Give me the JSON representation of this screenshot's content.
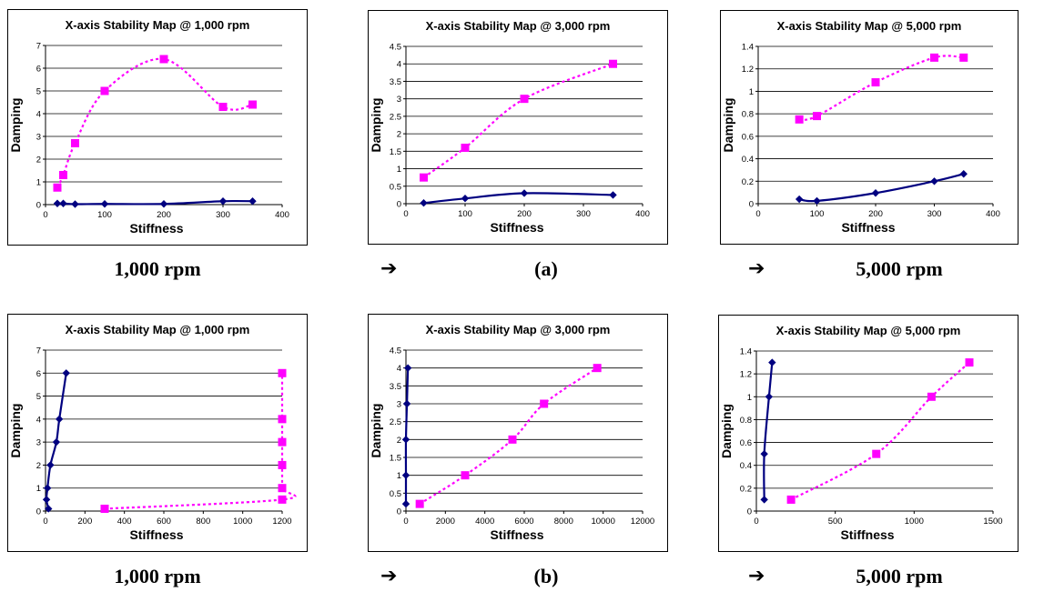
{
  "captions": {
    "row1": {
      "left": "1,000 rpm",
      "mid": "(a)",
      "right": "5,000 rpm"
    },
    "row2": {
      "left": "1,000 rpm",
      "mid": "(b)",
      "right": "5,000 rpm"
    },
    "arrow_glyph": "➔"
  },
  "colors": {
    "series_solid": "#000080",
    "series_dashed": "#ff00ff"
  },
  "chart_data": [
    {
      "type": "scatter",
      "title": "X-axis Stability Map @ 1,000 rpm",
      "xlabel": "Stiffness",
      "ylabel": "Damping",
      "xlim": [
        0,
        400
      ],
      "ylim": [
        0,
        7
      ],
      "xticks": [
        0,
        100,
        200,
        300,
        400
      ],
      "yticks": [
        0,
        1,
        2,
        3,
        4,
        5,
        6,
        7
      ],
      "grid": "horizontal",
      "series": [
        {
          "style": "solid",
          "color": "#000080",
          "marker": "diamond",
          "points": [
            [
              20,
              0.05
            ],
            [
              30,
              0.05
            ],
            [
              50,
              0.02
            ],
            [
              100,
              0.03
            ],
            [
              200,
              0.03
            ],
            [
              300,
              0.15
            ],
            [
              350,
              0.15
            ]
          ]
        },
        {
          "style": "dashed",
          "color": "#ff00ff",
          "marker": "square",
          "points": [
            [
              20,
              0.75
            ],
            [
              30,
              1.3
            ],
            [
              50,
              2.7
            ],
            [
              100,
              5.0
            ],
            [
              200,
              6.4
            ],
            [
              300,
              4.3
            ],
            [
              350,
              4.4
            ]
          ]
        }
      ]
    },
    {
      "type": "scatter",
      "title": "X-axis Stability Map @ 3,000 rpm",
      "xlabel": "Stiffness",
      "ylabel": "Damping",
      "xlim": [
        0,
        400
      ],
      "ylim": [
        0,
        4.5
      ],
      "xticks": [
        0,
        100,
        200,
        300,
        400
      ],
      "yticks": [
        0,
        0.5,
        1,
        1.5,
        2,
        2.5,
        3,
        3.5,
        4,
        4.5
      ],
      "grid": "horizontal",
      "series": [
        {
          "style": "solid",
          "color": "#000080",
          "marker": "diamond",
          "points": [
            [
              30,
              0.02
            ],
            [
              100,
              0.15
            ],
            [
              200,
              0.3
            ],
            [
              350,
              0.25
            ]
          ]
        },
        {
          "style": "dashed",
          "color": "#ff00ff",
          "marker": "square",
          "points": [
            [
              30,
              0.75
            ],
            [
              100,
              1.6
            ],
            [
              200,
              3.0
            ],
            [
              350,
              4.0
            ]
          ]
        }
      ]
    },
    {
      "type": "scatter",
      "title": "X-axis Stability Map @ 5,000 rpm",
      "xlabel": "Stiffness",
      "ylabel": "Damping",
      "xlim": [
        0,
        400
      ],
      "ylim": [
        0,
        1.4
      ],
      "xticks": [
        0,
        100,
        200,
        300,
        400
      ],
      "yticks": [
        0,
        0.2,
        0.4,
        0.6,
        0.8,
        1,
        1.2,
        1.4
      ],
      "grid": "horizontal",
      "series": [
        {
          "style": "solid",
          "color": "#000080",
          "marker": "diamond",
          "points": [
            [
              70,
              0.04
            ],
            [
              100,
              0.025
            ],
            [
              200,
              0.095
            ],
            [
              300,
              0.2
            ],
            [
              350,
              0.265
            ]
          ]
        },
        {
          "style": "dashed",
          "color": "#ff00ff",
          "marker": "square",
          "points": [
            [
              70,
              0.75
            ],
            [
              100,
              0.78
            ],
            [
              200,
              1.08
            ],
            [
              300,
              1.3
            ],
            [
              350,
              1.3
            ]
          ]
        }
      ]
    },
    {
      "type": "scatter",
      "title": "X-axis Stability Map @ 1,000 rpm",
      "xlabel": "Stiffness",
      "ylabel": "Damping",
      "xlim": [
        0,
        1200
      ],
      "ylim": [
        0,
        7
      ],
      "xticks": [
        0,
        200,
        400,
        600,
        800,
        1000,
        1200
      ],
      "yticks": [
        0,
        1,
        2,
        3,
        4,
        5,
        6,
        7
      ],
      "grid": "horizontal",
      "series": [
        {
          "style": "solid",
          "color": "#000080",
          "marker": "diamond",
          "points": [
            [
              15,
              0.1
            ],
            [
              5,
              0.5
            ],
            [
              10,
              1.0
            ],
            [
              25,
              2.0
            ],
            [
              55,
              3.0
            ],
            [
              70,
              4.0
            ],
            [
              105,
              6.0
            ]
          ]
        },
        {
          "style": "dashed",
          "color": "#ff00ff",
          "marker": "square",
          "points": [
            [
              300,
              0.1
            ],
            [
              1200,
              0.5
            ],
            [
              1200,
              1.0
            ],
            [
              1200,
              2.0
            ],
            [
              1200,
              3.0
            ],
            [
              1200,
              4.0
            ],
            [
              1200,
              6.0
            ]
          ]
        }
      ]
    },
    {
      "type": "scatter",
      "title": "X-axis Stability Map @ 3,000 rpm",
      "xlabel": "Stiffness",
      "ylabel": "Damping",
      "xlim": [
        0,
        12000
      ],
      "ylim": [
        0,
        4.5
      ],
      "xticks": [
        0,
        2000,
        4000,
        6000,
        8000,
        10000,
        12000
      ],
      "yticks": [
        0,
        0.5,
        1,
        1.5,
        2,
        2.5,
        3,
        3.5,
        4,
        4.5
      ],
      "grid": "horizontal",
      "series": [
        {
          "style": "solid",
          "color": "#000080",
          "marker": "diamond",
          "points": [
            [
              0,
              0.2
            ],
            [
              0,
              1.0
            ],
            [
              0,
              2.0
            ],
            [
              50,
              3.0
            ],
            [
              100,
              4.0
            ]
          ]
        },
        {
          "style": "dashed",
          "color": "#ff00ff",
          "marker": "square",
          "points": [
            [
              700,
              0.2
            ],
            [
              3000,
              1.0
            ],
            [
              5400,
              2.0
            ],
            [
              7000,
              3.0
            ],
            [
              9700,
              4.0
            ]
          ]
        }
      ]
    },
    {
      "type": "scatter",
      "title": "X-axis Stability Map @ 5,000 rpm",
      "xlabel": "Stiffness",
      "ylabel": "Damping",
      "xlim": [
        0,
        1500
      ],
      "ylim": [
        0,
        1.4
      ],
      "xticks": [
        0,
        500,
        1000,
        1500
      ],
      "yticks": [
        0,
        0.2,
        0.4,
        0.6,
        0.8,
        1,
        1.2,
        1.4
      ],
      "grid": "horizontal",
      "series": [
        {
          "style": "solid",
          "color": "#000080",
          "marker": "diamond",
          "points": [
            [
              50,
              0.1
            ],
            [
              50,
              0.5
            ],
            [
              80,
              1.0
            ],
            [
              100,
              1.3
            ]
          ]
        },
        {
          "style": "dashed",
          "color": "#ff00ff",
          "marker": "square",
          "points": [
            [
              220,
              0.1
            ],
            [
              760,
              0.5
            ],
            [
              1110,
              1.0
            ],
            [
              1350,
              1.3
            ]
          ]
        }
      ]
    }
  ]
}
